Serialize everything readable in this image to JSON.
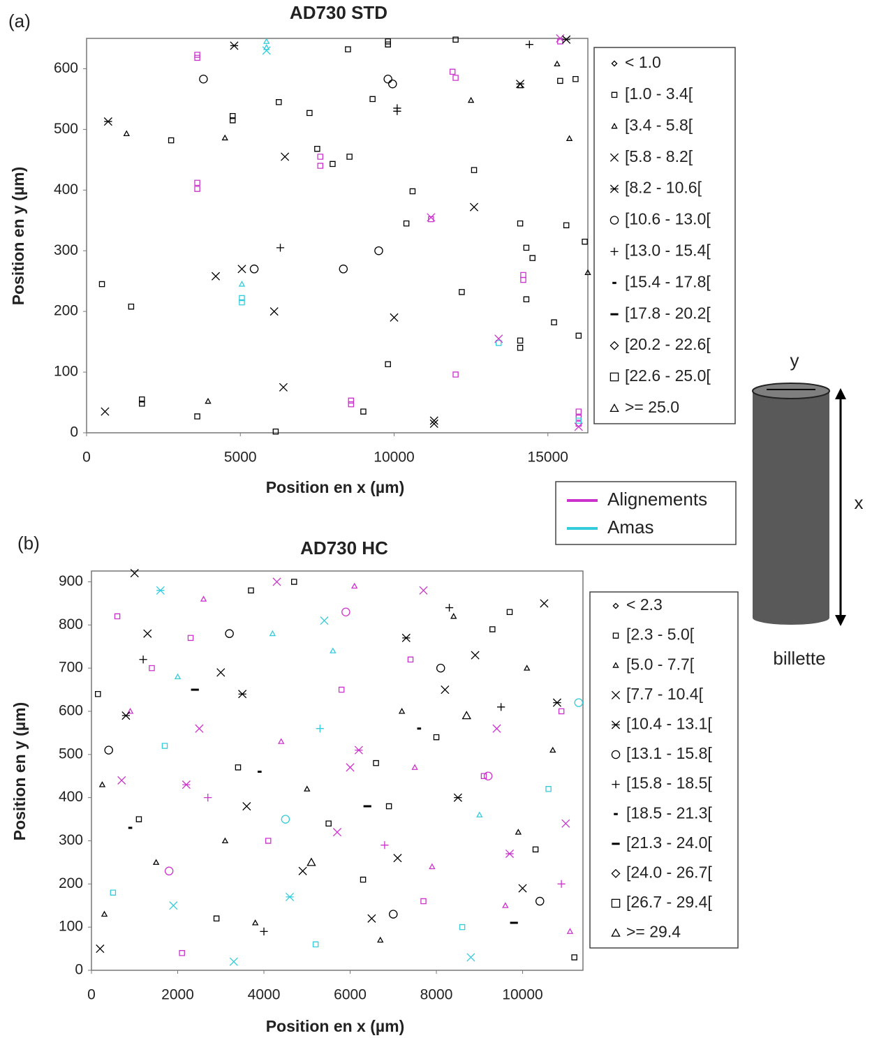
{
  "chart_data": [
    {
      "type": "scatter",
      "panel_label": "(a)",
      "title": "AD730 STD",
      "xlabel": "Position en x (µm)",
      "ylabel": "Position en y (µm)",
      "xlim": [
        0,
        16300
      ],
      "ylim": [
        0,
        650
      ],
      "xticks": [
        0,
        5000,
        10000,
        15000
      ],
      "yticks": [
        0,
        100,
        200,
        300,
        400,
        500,
        600
      ],
      "series": [
        {
          "name": "< 1.0",
          "marker": "diamond-small",
          "x": [],
          "values": [],
          "colors": []
        },
        {
          "name": "[1.0 - 3.4[",
          "marker": "square-small",
          "x": [
            500,
            1450,
            1800,
            1800,
            2750,
            3600,
            6150,
            6250,
            4750,
            4750,
            7250,
            7500,
            8000,
            8550,
            8500,
            9300,
            9000,
            9800,
            9800,
            9800,
            10600,
            10400,
            12000,
            12200,
            12600,
            14100,
            14100,
            14100,
            14300,
            14300,
            14500,
            15200,
            15600,
            15400,
            15900,
            16000,
            16200,
            3600,
            3600,
            3600,
            3600,
            7600,
            7600,
            8600,
            8600,
            11900,
            12000,
            12000,
            14200,
            14200,
            11200,
            15400,
            16000,
            16000,
            16000,
            5050,
            5050,
            13400,
            16000
          ],
          "values": [
            245,
            208,
            48,
            55,
            482,
            27,
            2,
            545,
            515,
            522,
            527,
            468,
            443,
            455,
            632,
            550,
            35,
            640,
            645,
            113,
            398,
            345,
            648,
            232,
            433,
            345,
            140,
            152,
            305,
            220,
            288,
            182,
            342,
            580,
            583,
            160,
            315,
            618,
            623,
            402,
            412,
            440,
            455,
            47,
            53,
            595,
            585,
            96,
            252,
            260,
            352,
            645,
            15,
            35,
            25,
            215,
            222,
            148,
            20
          ],
          "colors": [
            "#000000",
            "#000000",
            "#000000",
            "#000000",
            "#000000",
            "#000000",
            "#000000",
            "#000000",
            "#000000",
            "#000000",
            "#000000",
            "#000000",
            "#000000",
            "#000000",
            "#000000",
            "#000000",
            "#000000",
            "#000000",
            "#000000",
            "#000000",
            "#000000",
            "#000000",
            "#000000",
            "#000000",
            "#000000",
            "#000000",
            "#000000",
            "#000000",
            "#000000",
            "#000000",
            "#000000",
            "#000000",
            "#000000",
            "#000000",
            "#000000",
            "#000000",
            "#000000",
            "#cc33cc",
            "#cc33cc",
            "#cc33cc",
            "#cc33cc",
            "#cc33cc",
            "#cc33cc",
            "#cc33cc",
            "#cc33cc",
            "#cc33cc",
            "#cc33cc",
            "#cc33cc",
            "#cc33cc",
            "#cc33cc",
            "#cc33cc",
            "#cc33cc",
            "#cc33cc",
            "#cc33cc",
            "#cc33cc",
            "#33ccdd",
            "#33ccdd",
            "#33ccdd",
            "#33ccdd"
          ]
        },
        {
          "name": "[3.4 - 5.8[",
          "marker": "triangle-small",
          "x": [
            1300,
            3950,
            4500,
            12500,
            15300,
            15700,
            16300,
            14100,
            5850,
            5050,
            5850
          ],
          "values": [
            493,
            52,
            486,
            548,
            608,
            485,
            264,
            572,
            645,
            245,
            635
          ],
          "colors": [
            "#000000",
            "#000000",
            "#000000",
            "#000000",
            "#000000",
            "#000000",
            "#000000",
            "#000000",
            "#33ccdd",
            "#33ccdd",
            "#33ccdd"
          ]
        },
        {
          "name": "[5.8 - 8.2[",
          "marker": "x",
          "x": [
            600,
            6450,
            6400,
            6100,
            4200,
            10000,
            12600,
            5050,
            11300,
            11300,
            5850,
            13400,
            15400,
            11200,
            16000
          ],
          "values": [
            35,
            455,
            75,
            200,
            258,
            190,
            372,
            270,
            15,
            20,
            630,
            155,
            650,
            355,
            10
          ],
          "colors": [
            "#000000",
            "#000000",
            "#000000",
            "#000000",
            "#000000",
            "#000000",
            "#000000",
            "#000000",
            "#000000",
            "#000000",
            "#33ccdd",
            "#cc33cc",
            "#cc33cc",
            "#cc33cc",
            "#cc33cc"
          ]
        },
        {
          "name": "[8.2 - 10.6[",
          "marker": "star",
          "x": [
            700,
            4800,
            15600,
            14100
          ],
          "values": [
            513,
            638,
            648,
            575
          ],
          "colors": [
            "#000000",
            "#000000",
            "#000000",
            "#000000"
          ]
        },
        {
          "name": "[10.6 - 13.0[",
          "marker": "circle",
          "x": [
            3800,
            5450,
            8350,
            9500,
            9800,
            9950
          ],
          "values": [
            583,
            270,
            270,
            300,
            583,
            575
          ],
          "colors": [
            "#000000",
            "#000000",
            "#000000",
            "#000000",
            "#000000",
            "#000000"
          ]
        },
        {
          "name": "[13.0 - 15.4[",
          "marker": "plus",
          "x": [
            6300,
            10100,
            14400,
            10100
          ],
          "values": [
            305,
            535,
            640,
            530
          ],
          "colors": [
            "#000000",
            "#000000",
            "#000000",
            "#000000"
          ]
        },
        {
          "name": "[15.4 - 17.8[",
          "marker": "dot",
          "x": [],
          "values": [],
          "colors": []
        },
        {
          "name": "[17.8 - 20.2[",
          "marker": "dash",
          "x": [],
          "values": [],
          "colors": []
        },
        {
          "name": "[20.2 - 22.6[",
          "marker": "diamond",
          "x": [],
          "values": [],
          "colors": []
        },
        {
          "name": "[22.6 - 25.0[",
          "marker": "square",
          "x": [],
          "values": [],
          "colors": []
        },
        {
          "name": ">= 25.0",
          "marker": "triangle",
          "x": [],
          "values": [],
          "colors": []
        }
      ]
    },
    {
      "type": "scatter",
      "panel_label": "(b)",
      "title": "AD730 HC",
      "xlabel": "Position en x (µm)",
      "ylabel": "Position en y (µm)",
      "xlim": [
        0,
        11400
      ],
      "ylim": [
        0,
        925
      ],
      "xticks": [
        0,
        2000,
        4000,
        6000,
        8000,
        10000
      ],
      "yticks": [
        0,
        100,
        200,
        300,
        400,
        500,
        600,
        700,
        800,
        900
      ],
      "series": [
        {
          "name": "< 2.3",
          "marker": "diamond-small",
          "x": [],
          "values": [],
          "colors": []
        },
        {
          "name": "[2.3 - 5.0[",
          "marker": "square-small",
          "x": [
            150,
            600,
            1100,
            1700,
            2300,
            2900,
            3400,
            4100,
            4700,
            5200,
            5800,
            6300,
            6900,
            7400,
            8000,
            8600,
            9100,
            9700,
            10300,
            10900,
            11200,
            500,
            2100,
            3700,
            5500,
            7700,
            9300,
            10600,
            1400,
            6600
          ],
          "values": [
            640,
            820,
            350,
            520,
            770,
            120,
            470,
            300,
            900,
            60,
            650,
            210,
            380,
            720,
            540,
            100,
            450,
            830,
            280,
            600,
            30,
            180,
            40,
            880,
            340,
            160,
            790,
            420,
            700,
            480
          ],
          "colors": [
            "#000000",
            "#cc33cc",
            "#000000",
            "#33ccdd",
            "#cc33cc",
            "#000000",
            "#000000",
            "#cc33cc",
            "#000000",
            "#33ccdd",
            "#cc33cc",
            "#000000",
            "#000000",
            "#cc33cc",
            "#000000",
            "#33ccdd",
            "#cc33cc",
            "#000000",
            "#000000",
            "#cc33cc",
            "#000000",
            "#33ccdd",
            "#cc33cc",
            "#000000",
            "#000000",
            "#cc33cc",
            "#000000",
            "#33ccdd",
            "#cc33cc",
            "#000000"
          ]
        },
        {
          "name": "[5.0 - 7.7[",
          "marker": "triangle-small",
          "x": [
            300,
            900,
            1500,
            2000,
            2600,
            3100,
            3800,
            4400,
            5000,
            5600,
            6100,
            6700,
            7200,
            7900,
            8400,
            9000,
            9600,
            10100,
            10700,
            11100,
            250,
            4200,
            7500,
            9900
          ],
          "values": [
            130,
            600,
            250,
            680,
            860,
            300,
            110,
            530,
            420,
            740,
            890,
            70,
            600,
            240,
            820,
            360,
            150,
            700,
            510,
            90,
            430,
            780,
            470,
            320
          ],
          "colors": [
            "#000000",
            "#cc33cc",
            "#000000",
            "#33ccdd",
            "#cc33cc",
            "#000000",
            "#000000",
            "#cc33cc",
            "#000000",
            "#33ccdd",
            "#cc33cc",
            "#000000",
            "#000000",
            "#cc33cc",
            "#000000",
            "#33ccdd",
            "#cc33cc",
            "#000000",
            "#000000",
            "#cc33cc",
            "#000000",
            "#33ccdd",
            "#cc33cc",
            "#000000"
          ]
        },
        {
          "name": "[7.7 - 10.4[",
          "marker": "x",
          "x": [
            200,
            700,
            1300,
            1900,
            2500,
            3000,
            3600,
            4300,
            4900,
            5400,
            6000,
            6500,
            7100,
            7700,
            8200,
            8800,
            9400,
            10000,
            10500,
            11000,
            1000,
            3300,
            5700,
            8900
          ],
          "values": [
            50,
            440,
            780,
            150,
            560,
            690,
            380,
            900,
            230,
            810,
            470,
            120,
            260,
            880,
            650,
            30,
            560,
            190,
            850,
            340,
            920,
            20,
            320,
            730
          ],
          "colors": [
            "#000000",
            "#cc33cc",
            "#000000",
            "#33ccdd",
            "#cc33cc",
            "#000000",
            "#000000",
            "#cc33cc",
            "#000000",
            "#33ccdd",
            "#cc33cc",
            "#000000",
            "#000000",
            "#cc33cc",
            "#000000",
            "#33ccdd",
            "#cc33cc",
            "#000000",
            "#000000",
            "#cc33cc",
            "#000000",
            "#33ccdd",
            "#cc33cc",
            "#000000"
          ]
        },
        {
          "name": "[10.4 - 13.1[",
          "marker": "star",
          "x": [
            800,
            2200,
            3500,
            4600,
            6200,
            7300,
            8500,
            9700,
            10800,
            1600
          ],
          "values": [
            590,
            430,
            640,
            170,
            510,
            770,
            400,
            270,
            620,
            880
          ],
          "colors": [
            "#000000",
            "#cc33cc",
            "#000000",
            "#33ccdd",
            "#cc33cc",
            "#000000",
            "#000000",
            "#cc33cc",
            "#000000",
            "#33ccdd"
          ]
        },
        {
          "name": "[13.1 - 15.8[",
          "marker": "circle",
          "x": [
            400,
            1800,
            3200,
            4500,
            5900,
            7000,
            8100,
            9200,
            10400,
            11300
          ],
          "values": [
            510,
            230,
            780,
            350,
            830,
            130,
            700,
            450,
            160,
            620
          ],
          "colors": [
            "#000000",
            "#cc33cc",
            "#000000",
            "#33ccdd",
            "#cc33cc",
            "#000000",
            "#000000",
            "#cc33cc",
            "#000000",
            "#33ccdd"
          ]
        },
        {
          "name": "[15.8 - 18.5[",
          "marker": "plus",
          "x": [
            1200,
            2700,
            4000,
            5300,
            6800,
            8300,
            9500,
            10900
          ],
          "values": [
            720,
            400,
            90,
            560,
            290,
            840,
            610,
            200
          ],
          "colors": [
            "#000000",
            "#cc33cc",
            "#000000",
            "#33ccdd",
            "#cc33cc",
            "#000000",
            "#000000",
            "#cc33cc"
          ]
        },
        {
          "name": "[18.5 - 21.3[",
          "marker": "dot",
          "x": [
            900,
            3900,
            7600
          ],
          "values": [
            330,
            460,
            560
          ],
          "colors": [
            "#000000",
            "#000000",
            "#000000"
          ]
        },
        {
          "name": "[21.3 - 24.0[",
          "marker": "dash",
          "x": [
            2400,
            6400,
            9800
          ],
          "values": [
            650,
            380,
            110
          ],
          "colors": [
            "#000000",
            "#000000",
            "#000000"
          ]
        },
        {
          "name": "[24.0 - 26.7[",
          "marker": "diamond",
          "x": [],
          "values": [],
          "colors": []
        },
        {
          "name": "[26.7 - 29.4[",
          "marker": "square",
          "x": [],
          "values": [],
          "colors": []
        },
        {
          "name": ">= 29.4",
          "marker": "triangle",
          "x": [
            5100,
            8700
          ],
          "values": [
            250,
            590
          ],
          "colors": [
            "#000000",
            "#000000"
          ]
        }
      ]
    }
  ],
  "group_legend": [
    {
      "name": "Alignements",
      "color": "#cc33cc"
    },
    {
      "name": "Amas",
      "color": "#33ccdd"
    }
  ],
  "diagram": {
    "axis_y": "y",
    "axis_x": "x",
    "caption": "billette"
  }
}
